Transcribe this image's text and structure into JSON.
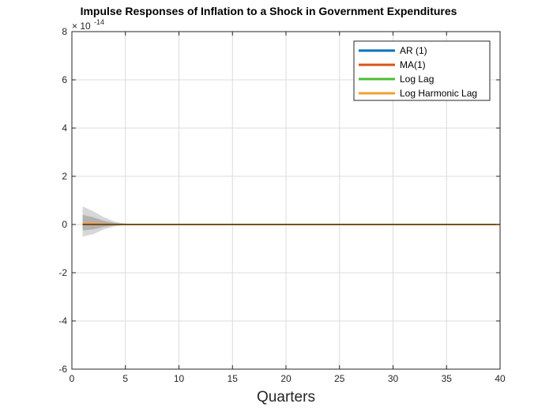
{
  "chart_data": {
    "type": "line",
    "title": "Impulse Responses of Inflation to a Shock in Government Expenditures",
    "xlabel": "Quarters",
    "ylabel": "",
    "xlim": [
      0,
      40
    ],
    "ylim": [
      -6,
      8
    ],
    "y_exponent_label": "× 10",
    "y_exponent_power": "-14",
    "xticks": [
      "0",
      "5",
      "10",
      "15",
      "20",
      "25",
      "30",
      "35",
      "40"
    ],
    "yticks": [
      "-6",
      "-4",
      "-2",
      "0",
      "2",
      "4",
      "6",
      "8"
    ],
    "grid": true,
    "legend_position": "top-right",
    "x": [
      1,
      2,
      3,
      4,
      5,
      6,
      7,
      8,
      9,
      10,
      11,
      12,
      13,
      14,
      15,
      16,
      17,
      18,
      19,
      20,
      21,
      22,
      23,
      24,
      25,
      26,
      27,
      28,
      29,
      30,
      31,
      32,
      33,
      34,
      35,
      36,
      37,
      38,
      39,
      40
    ],
    "series": [
      {
        "name": "AR (1)",
        "color": "#0072BD",
        "values": [
          0,
          0,
          0,
          0,
          0,
          0,
          0,
          0,
          0,
          0,
          0,
          0,
          0,
          0,
          0,
          0,
          0,
          0,
          0,
          0,
          0,
          0,
          0,
          0,
          0,
          0,
          0,
          0,
          0,
          0,
          0,
          0,
          0,
          0,
          0,
          0,
          0,
          0,
          0,
          0
        ]
      },
      {
        "name": "MA(1)",
        "color": "#D95319",
        "values": [
          0,
          0,
          0,
          0,
          0,
          0,
          0,
          0,
          0,
          0,
          0,
          0,
          0,
          0,
          0,
          0,
          0,
          0,
          0,
          0,
          0,
          0,
          0,
          0,
          0,
          0,
          0,
          0,
          0,
          0,
          0,
          0,
          0,
          0,
          0,
          0,
          0,
          0,
          0,
          0
        ]
      },
      {
        "name": "Log Lag",
        "color": "#4DBD33",
        "values": [
          0,
          0,
          0,
          0,
          0,
          0,
          0,
          0,
          0,
          0,
          0,
          0,
          0,
          0,
          0,
          0,
          0,
          0,
          0,
          0,
          0,
          0,
          0,
          0,
          0,
          0,
          0,
          0,
          0,
          0,
          0,
          0,
          0,
          0,
          0,
          0,
          0,
          0,
          0,
          0
        ]
      },
      {
        "name": "Log Harmonic Lag",
        "color": "#F0A030",
        "values": [
          0,
          0,
          0,
          0,
          0,
          0,
          0,
          0,
          0,
          0,
          0,
          0,
          0,
          0,
          0,
          0,
          0,
          0,
          0,
          0,
          0,
          0,
          0,
          0,
          0,
          0,
          0,
          0,
          0,
          0,
          0,
          0,
          0,
          0,
          0,
          0,
          0,
          0,
          0,
          0
        ]
      }
    ],
    "bands": [
      {
        "x": [
          1,
          2,
          3,
          4,
          5,
          6
        ],
        "upper": [
          0.75,
          0.55,
          0.3,
          0.12,
          0.04,
          0.0
        ],
        "lower": [
          -0.5,
          -0.4,
          -0.2,
          -0.08,
          -0.02,
          0.0
        ],
        "color": "#bdbdbd"
      },
      {
        "x": [
          1,
          2,
          3,
          4,
          5,
          6
        ],
        "upper": [
          0.4,
          0.3,
          0.15,
          0.06,
          0.02,
          0.0
        ],
        "lower": [
          -0.25,
          -0.2,
          -0.1,
          -0.04,
          -0.01,
          0.0
        ],
        "color": "#9a9a9a"
      }
    ],
    "orange_band": {
      "x": [
        1,
        2,
        3,
        4,
        5
      ],
      "upper": [
        0.12,
        0.1,
        0.06,
        0.03,
        0.0
      ],
      "lower": [
        0.0,
        0.0,
        0.0,
        0.0,
        0.0
      ],
      "color": "#E8A050"
    }
  }
}
